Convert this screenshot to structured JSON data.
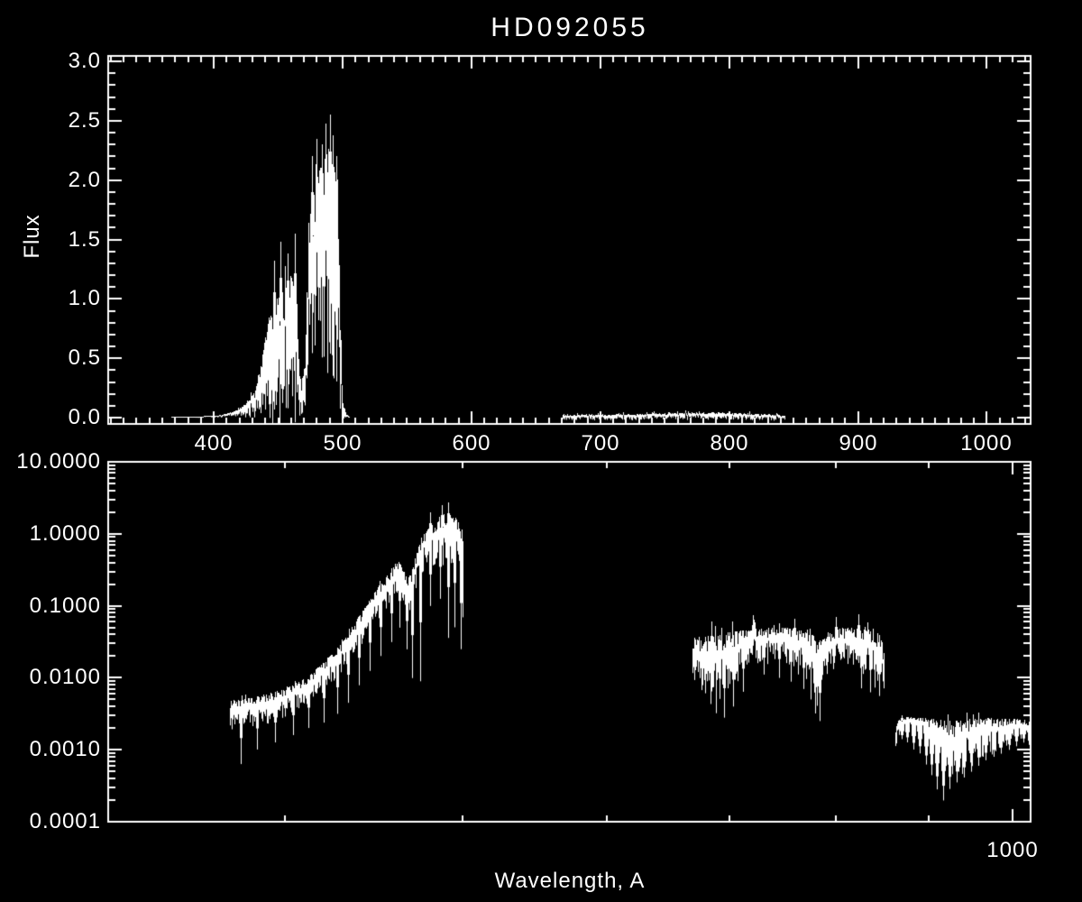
{
  "figure": {
    "title": "HD092055",
    "background_color": "#000000",
    "foreground_color": "#ffffff"
  },
  "chart_data": [
    {
      "panel": "top",
      "type": "line",
      "ylabel": "Flux",
      "xscale": "linear",
      "yscale": "linear",
      "xlim": [
        318,
        1034
      ],
      "ylim": [
        -0.053,
        3.046
      ],
      "x_major_ticks": [
        400,
        500,
        600,
        700,
        800,
        900,
        1000
      ],
      "x_tick_labels": [
        "400",
        "500",
        "600",
        "700",
        "800",
        "900",
        "1000"
      ],
      "x_minor_step": 10,
      "y_major_ticks": [
        0.0,
        0.5,
        1.0,
        1.5,
        2.0,
        2.5,
        3.0
      ],
      "y_tick_labels": [
        "0.0",
        "0.5",
        "1.0",
        "1.5",
        "2.0",
        "2.5",
        "3.0"
      ],
      "y_minor_step": 0.1,
      "grid": false,
      "series_color": "#ffffff",
      "segments": [
        {
          "name": "short-wavelength-emission",
          "env_scale": "flux",
          "env": [
            [
              367,
              0,
              0.006
            ],
            [
              390,
              0,
              0.01
            ],
            [
              405,
              0.005,
              0.02
            ],
            [
              415,
              0.01,
              0.05
            ],
            [
              424,
              0.015,
              0.11
            ],
            [
              432,
              0.02,
              0.22
            ],
            [
              438,
              0.03,
              0.55
            ],
            [
              443,
              0.04,
              0.85
            ],
            [
              448,
              0.05,
              1.0
            ],
            [
              454,
              0.06,
              1.1
            ],
            [
              460,
              0.07,
              1.2
            ],
            [
              464,
              0.06,
              1.0
            ],
            [
              466,
              0.04,
              0.5
            ],
            [
              468,
              0.03,
              0.3
            ],
            [
              471,
              0.05,
              0.45
            ],
            [
              473,
              0.3,
              1.3
            ],
            [
              476,
              0.45,
              1.9
            ],
            [
              481,
              0.5,
              2.05
            ],
            [
              486,
              0.55,
              2.2
            ],
            [
              490,
              0.55,
              2.3
            ],
            [
              493,
              0.5,
              2.15
            ],
            [
              496,
              0.45,
              1.95
            ],
            [
              498,
              0.1,
              1.1
            ],
            [
              500,
              0,
              0.15
            ],
            [
              503,
              0,
              0.03
            ],
            [
              505,
              0,
              0.01
            ]
          ],
          "spikes": [
            [
              447,
              1.32
            ],
            [
              452,
              1.48
            ],
            [
              457,
              1.38
            ],
            [
              463,
              1.55
            ],
            [
              476,
              2.2
            ],
            [
              480,
              2.35
            ],
            [
              484,
              2.3
            ],
            [
              487,
              2.48
            ],
            [
              490,
              2.55
            ],
            [
              492,
              2.38
            ],
            [
              495,
              2.2
            ]
          ],
          "spike_w": 1,
          "tail_pow": 0.8,
          "up_p": 0.05,
          "up_k": 0.2
        },
        {
          "name": "mid-wavelength-faint-band",
          "env_scale": "flux",
          "env": [
            [
              671,
              -0.018,
              0.02
            ],
            [
              690,
              -0.018,
              0.025
            ],
            [
              710,
              -0.015,
              0.028
            ],
            [
              730,
              -0.015,
              0.032
            ],
            [
              750,
              -0.012,
              0.038
            ],
            [
              770,
              -0.012,
              0.042
            ],
            [
              790,
              -0.012,
              0.045
            ],
            [
              805,
              -0.015,
              0.04
            ],
            [
              820,
              -0.015,
              0.032
            ],
            [
              835,
              -0.018,
              0.026
            ],
            [
              843,
              -0.018,
              0.02
            ]
          ],
          "spikes": [],
          "spike_w": 1,
          "tail_pow": 1.2,
          "up_p": 0.1,
          "up_k": 0.4
        }
      ]
    },
    {
      "panel": "bottom",
      "type": "line",
      "xlabel": "Wavelength, A",
      "xscale": "log",
      "yscale": "log",
      "xlim": [
        320,
        1023
      ],
      "ylim": [
        0.0001,
        10
      ],
      "x_major_ticks": [
        1000
      ],
      "x_tick_labels": [
        "1000"
      ],
      "x_minor_ticks": [
        400,
        500,
        600,
        700,
        800,
        900
      ],
      "y_major_ticks": [
        10,
        1,
        0.1,
        0.01,
        0.001,
        0.0001
      ],
      "y_tick_labels": [
        "10.0000",
        "1.0000",
        "0.1000",
        "0.0100",
        "0.0010",
        "0.0001"
      ],
      "grid": false,
      "series_color": "#ffffff",
      "segments": [
        {
          "name": "short-wavelength-log",
          "env_scale": "log10_flux",
          "env": [
            [
              373,
              -2.75,
              -2.32
            ],
            [
              382,
              -2.65,
              -2.28
            ],
            [
              392,
              -2.6,
              -2.22
            ],
            [
              402,
              -2.5,
              -2.12
            ],
            [
              412,
              -2.35,
              -1.98
            ],
            [
              422,
              -2.1,
              -1.72
            ],
            [
              430,
              -1.9,
              -1.5
            ],
            [
              437,
              -1.65,
              -1.22
            ],
            [
              444,
              -1.4,
              -0.95
            ],
            [
              450,
              -1.2,
              -0.72
            ],
            [
              456,
              -1.0,
              -0.52
            ],
            [
              462,
              -0.85,
              -0.35
            ],
            [
              466,
              -1.1,
              -0.6
            ],
            [
              469,
              -1.05,
              -0.55
            ],
            [
              472,
              -0.7,
              -0.25
            ],
            [
              475,
              -0.5,
              -0.05
            ],
            [
              480,
              -0.4,
              0.1
            ],
            [
              485,
              -0.35,
              0.22
            ],
            [
              490,
              -0.38,
              0.3
            ],
            [
              494,
              -0.4,
              0.25
            ],
            [
              498,
              -0.5,
              0.2
            ],
            [
              500,
              -1.2,
              -0.1
            ]
          ],
          "spikes": [
            [
              378,
              -3.2
            ],
            [
              386,
              -3.0
            ],
            [
              395,
              -2.9
            ],
            [
              404,
              -2.8
            ],
            [
              412,
              -2.7
            ],
            [
              420,
              -2.62
            ],
            [
              427,
              -2.5
            ],
            [
              433,
              -2.35
            ],
            [
              439,
              -2.1
            ],
            [
              445,
              -1.9
            ],
            [
              451,
              -1.7
            ],
            [
              457,
              -1.5
            ],
            [
              462,
              -1.3
            ],
            [
              466,
              -1.6
            ],
            [
              469,
              -2.0
            ],
            [
              474,
              -2.05
            ],
            [
              480,
              -1.0
            ],
            [
              486,
              -0.9
            ],
            [
              491,
              -1.45
            ],
            [
              495,
              -1.3
            ],
            [
              499,
              -1.6
            ],
            [
              487,
              0.4
            ],
            [
              491,
              0.43
            ],
            [
              480,
              0.3
            ]
          ],
          "spike_w": 1,
          "tail_pow": 1.4,
          "up_p": 0.05,
          "up_k": 0.2
        },
        {
          "name": "mid-wavelength-log",
          "env_scale": "log10_flux",
          "env": [
            [
              668,
              -2.0,
              -1.44
            ],
            [
              674,
              -2.2,
              -1.46
            ],
            [
              682,
              -2.35,
              -1.42
            ],
            [
              692,
              -2.45,
              -1.4
            ],
            [
              700,
              -2.3,
              -1.37
            ],
            [
              708,
              -2.0,
              -1.35
            ],
            [
              716,
              -1.85,
              -1.33
            ],
            [
              726,
              -1.78,
              -1.32
            ],
            [
              738,
              -1.75,
              -1.3
            ],
            [
              750,
              -1.78,
              -1.3
            ],
            [
              760,
              -1.85,
              -1.32
            ],
            [
              770,
              -2.0,
              -1.35
            ],
            [
              778,
              -2.3,
              -1.4
            ],
            [
              783,
              -2.55,
              -1.52
            ],
            [
              787,
              -2.1,
              -1.42
            ],
            [
              794,
              -1.85,
              -1.35
            ],
            [
              805,
              -1.8,
              -1.31
            ],
            [
              818,
              -1.85,
              -1.31
            ],
            [
              830,
              -1.95,
              -1.33
            ],
            [
              840,
              -2.05,
              -1.34
            ],
            [
              847,
              -2.15,
              -1.42
            ],
            [
              850,
              -2.3,
              -1.55
            ]
          ],
          "spikes": [
            [
              695,
              -2.55
            ],
            [
              703,
              -2.4
            ],
            [
              712,
              -2.2
            ],
            [
              731,
              -1.95
            ],
            [
              745,
              -2.0
            ],
            [
              756,
              -2.05
            ],
            [
              768,
              -2.15
            ],
            [
              780,
              -2.5
            ],
            [
              784,
              -2.6
            ],
            [
              826,
              -2.15
            ],
            [
              836,
              -2.2
            ],
            [
              845,
              -2.25
            ],
            [
              684,
              -1.22
            ],
            [
              721,
              -1.13
            ],
            [
              760,
              -1.18
            ],
            [
              800,
              -1.16
            ],
            [
              823,
              -1.12
            ]
          ],
          "spike_w": 1,
          "tail_pow": 1.8,
          "up_p": 0.06,
          "up_k": 0.3
        },
        {
          "name": "long-wavelength-log",
          "env_scale": "log10_flux",
          "env": [
            [
              863,
              -3.0,
              -2.72
            ],
            [
              866,
              -2.8,
              -2.58
            ],
            [
              872,
              -2.72,
              -2.55
            ],
            [
              880,
              -2.7,
              -2.54
            ],
            [
              888,
              -2.75,
              -2.55
            ],
            [
              896,
              -2.85,
              -2.56
            ],
            [
              904,
              -3.1,
              -2.57
            ],
            [
              912,
              -3.35,
              -2.58
            ],
            [
              920,
              -3.45,
              -2.6
            ],
            [
              930,
              -3.35,
              -2.6
            ],
            [
              942,
              -3.25,
              -2.58
            ],
            [
              954,
              -3.15,
              -2.57
            ],
            [
              966,
              -3.08,
              -2.56
            ],
            [
              978,
              -3.0,
              -2.56
            ],
            [
              990,
              -2.95,
              -2.57
            ],
            [
              1002,
              -2.88,
              -2.57
            ],
            [
              1012,
              -2.82,
              -2.58
            ],
            [
              1020,
              -2.85,
              -2.6
            ],
            [
              1026,
              -3.0,
              -2.62
            ]
          ],
          "spikes": [
            [
              870,
              -2.85
            ],
            [
              876,
              -2.9
            ],
            [
              883,
              -3.0
            ],
            [
              890,
              -3.05
            ],
            [
              897,
              -3.2
            ],
            [
              903,
              -3.35
            ],
            [
              909,
              -3.55
            ],
            [
              916,
              -3.7
            ],
            [
              924,
              -3.55
            ],
            [
              932,
              -3.45
            ],
            [
              940,
              -3.38
            ],
            [
              949,
              -3.3
            ],
            [
              958,
              -3.22
            ],
            [
              967,
              -3.15
            ],
            [
              976,
              -3.1
            ],
            [
              985,
              -3.05
            ],
            [
              995,
              -3.0
            ],
            [
              1005,
              -2.95
            ],
            [
              1014,
              -2.9
            ],
            [
              1022,
              -3.0
            ]
          ],
          "spike_w": 2,
          "tail_pow": 2.2,
          "up_p": 0.02,
          "up_k": 0.2
        }
      ]
    }
  ]
}
